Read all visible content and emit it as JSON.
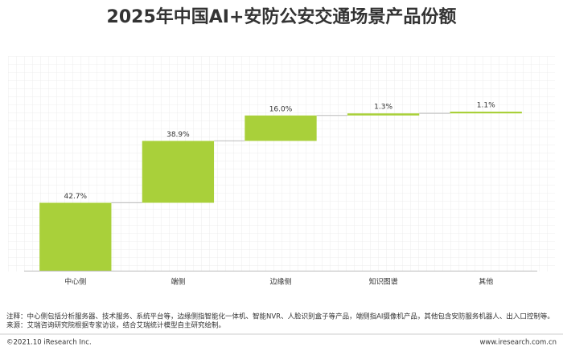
{
  "chart_data": {
    "type": "waterfall",
    "title": "2025年中国AI+安防公安交通场景产品份额",
    "categories": [
      "中心侧",
      "端侧",
      "边缘侧",
      "知识图谱",
      "其他"
    ],
    "values": [
      42.7,
      38.9,
      16.0,
      1.3,
      1.1
    ],
    "value_labels": [
      "42.7%",
      "38.9%",
      "16.0%",
      "1.3%",
      "1.1%"
    ],
    "color": "#a9d03a"
  },
  "notes": [
    "注释：中心侧包括分析服务器、技术服务、系统平台等，边缘侧指智能化一体机、智能NVR、人脸识别盒子等产品，端侧指AI摄像机产品，其他包含安防服务机器人、出入口控制等。",
    "来源：艾瑞咨询研究院根据专家访谈，结合艾瑞统计模型自主研究绘制。"
  ],
  "footer": {
    "copyright": "©2021.10 iResearch Inc.",
    "website": "www.iresearch.com.cn"
  }
}
